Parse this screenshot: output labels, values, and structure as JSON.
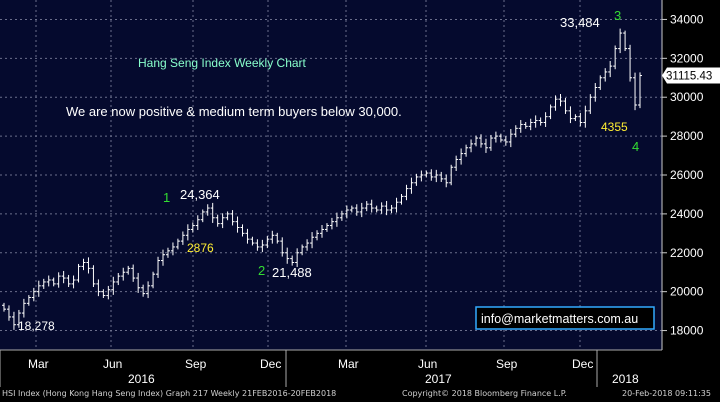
{
  "chart_data": {
    "type": "ohlc",
    "title": "Hang Seng Index Weekly Chart",
    "commentary": "We are now positive & medium term buyers below 30,000.",
    "ylim": [
      17000,
      35000
    ],
    "y_ticks": [
      18000,
      20000,
      22000,
      24000,
      26000,
      28000,
      30000,
      32000,
      34000
    ],
    "y_tick_labels": [
      "18000",
      "20000",
      "22000",
      "24000",
      "26000",
      "28000",
      "30000",
      "32000",
      "34000"
    ],
    "last_price": "31115.43",
    "x_month_labels": [
      "Mar",
      "Jun",
      "Sep",
      "Dec",
      "Mar",
      "Jun",
      "Sep",
      "Dec"
    ],
    "x_year_labels": [
      "2016",
      "2017",
      "2018"
    ],
    "grid": true,
    "series_closes": [
      19100,
      18700,
      18300,
      18900,
      19400,
      19700,
      20000,
      20300,
      20500,
      20600,
      20400,
      20800,
      20700,
      20400,
      20600,
      21300,
      21500,
      21200,
      20400,
      20000,
      19800,
      20100,
      20500,
      20800,
      21000,
      21200,
      20700,
      20200,
      19900,
      20300,
      20900,
      21600,
      21900,
      22100,
      22300,
      22600,
      22900,
      23200,
      23400,
      23700,
      24100,
      24300,
      23800,
      23500,
      23800,
      24000,
      23600,
      23300,
      23000,
      22700,
      22500,
      22300,
      22400,
      22700,
      22900,
      22600,
      22000,
      21700,
      21500,
      22000,
      22300,
      22500,
      22800,
      23000,
      23200,
      23400,
      23600,
      23800,
      24000,
      24200,
      24300,
      24100,
      24300,
      24500,
      24300,
      24200,
      24400,
      24200,
      24300,
      24600,
      24900,
      25300,
      25600,
      25900,
      26000,
      26100,
      25900,
      26000,
      25800,
      25600,
      26400,
      26800,
      27100,
      27400,
      27600,
      27900,
      27600,
      27400,
      27900,
      28000,
      27800,
      27700,
      28100,
      28400,
      28600,
      28500,
      28700,
      28800,
      28700,
      29000,
      29500,
      29900,
      29800,
      29300,
      28900,
      29000,
      28700,
      29300,
      30000,
      30500,
      31000,
      31300,
      31600,
      32500,
      33300,
      32500,
      31000,
      29600,
      31115
    ],
    "annotations": [
      {
        "label": "1",
        "color": "#33dd33"
      },
      {
        "label": "24,364",
        "color": "#ffffff"
      },
      {
        "label": "2876",
        "color": "#ffee33"
      },
      {
        "label": "2",
        "color": "#33dd33"
      },
      {
        "label": "21,488",
        "color": "#ffffff"
      },
      {
        "label": "18,278",
        "color": "#ffffff"
      },
      {
        "label": "3",
        "color": "#33dd33"
      },
      {
        "label": "33,484",
        "color": "#ffffff"
      },
      {
        "label": "4355",
        "color": "#ffee33"
      },
      {
        "label": "4",
        "color": "#33dd33"
      }
    ],
    "website": "info@marketmatters.com.au"
  },
  "footer": {
    "left": "HSI Index (Hong Kong Hang Seng Index) Graph 217  Weekly 21FEB2016-20FEB2018",
    "copyright": "Copyright© 2018 Bloomberg Finance L.P.",
    "timestamp": "20-Feb-2018 09:11:35"
  },
  "colors": {
    "background": "#050a2e",
    "bars": "#ffffff",
    "grid": "#6b6f8c",
    "title": "#88ffcc",
    "wave_label": "#33dd33",
    "yellow_label": "#ffee33",
    "website_box": "#33aaff"
  }
}
